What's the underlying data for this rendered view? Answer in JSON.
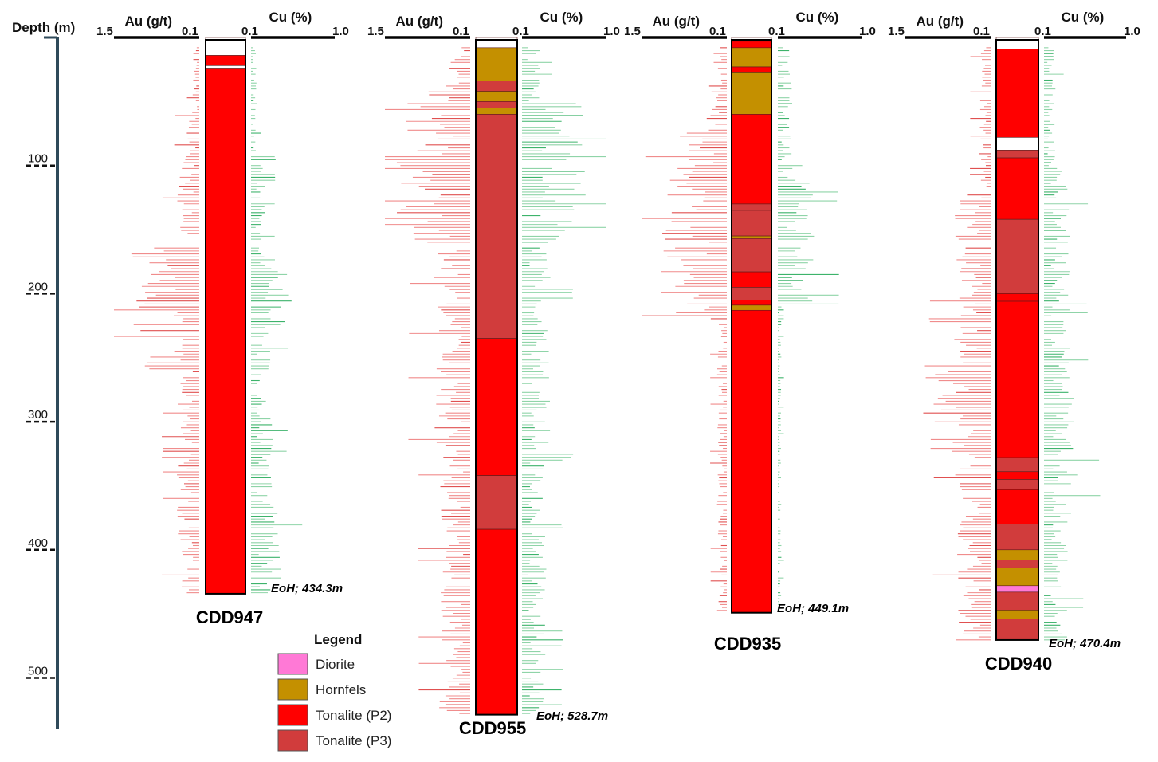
{
  "depth_axis": {
    "title": "Depth (m)",
    "ticks": [
      "100",
      "200",
      "300",
      "400",
      "500"
    ],
    "tick_values": [
      100,
      200,
      300,
      400,
      500
    ],
    "color": "#2f4a5a"
  },
  "axis_labels": {
    "au_title": "Au (g/t)",
    "au_max": "1.5",
    "au_min": "0.1",
    "cu_title": "Cu (%)",
    "cu_min": "0.1",
    "cu_max": "1.0"
  },
  "colors": {
    "au_bar": "#f08c8c",
    "au_bar_dark": "#e05050",
    "cu_bar": "#8fd4a8",
    "cu_bar_dark": "#3db36b",
    "diorite": "#ff79d6",
    "hornfels": "#c49000",
    "tonalite_p2": "#ff0000",
    "tonalite_p3": "#d13c3c",
    "outline": "#000000"
  },
  "holes": [
    {
      "name": "CDD947",
      "eoh": "EoH; 434.3m",
      "depth_m": 434.3,
      "au_seed": 11,
      "cu_seed": 23,
      "au_zones": [
        [
          0,
          60,
          0.06
        ],
        [
          60,
          90,
          0.12
        ],
        [
          90,
          160,
          0.18
        ],
        [
          160,
          260,
          0.55
        ],
        [
          260,
          434,
          0.18
        ]
      ],
      "cu_zones": [
        [
          0,
          90,
          0.05
        ],
        [
          90,
          180,
          0.12
        ],
        [
          180,
          230,
          0.35
        ],
        [
          230,
          360,
          0.18
        ],
        [
          360,
          434,
          0.25
        ]
      ],
      "intervals": [
        {
          "from": 0,
          "to": 14,
          "lith": "none"
        },
        {
          "from": 14,
          "to": 22,
          "lith": "tonalite_p2"
        },
        {
          "from": 22,
          "to": 24,
          "lith": "none"
        },
        {
          "from": 24,
          "to": 434.3,
          "lith": "tonalite_p2"
        }
      ]
    },
    {
      "name": "CDD955",
      "eoh": "EoH; 528.7m",
      "depth_m": 528.7,
      "au_seed": 37,
      "cu_seed": 41,
      "au_zones": [
        [
          0,
          50,
          0.2
        ],
        [
          50,
          160,
          0.6
        ],
        [
          160,
          330,
          0.3
        ],
        [
          330,
          528,
          0.25
        ]
      ],
      "cu_zones": [
        [
          0,
          50,
          0.15
        ],
        [
          50,
          160,
          0.55
        ],
        [
          160,
          330,
          0.25
        ],
        [
          330,
          528,
          0.2
        ]
      ],
      "intervals": [
        {
          "from": 0,
          "to": 8,
          "lith": "none"
        },
        {
          "from": 8,
          "to": 34,
          "lith": "hornfels"
        },
        {
          "from": 34,
          "to": 42,
          "lith": "tonalite_p3"
        },
        {
          "from": 42,
          "to": 50,
          "lith": "hornfels"
        },
        {
          "from": 50,
          "to": 55,
          "lith": "tonalite_p3"
        },
        {
          "from": 55,
          "to": 60,
          "lith": "hornfels"
        },
        {
          "from": 60,
          "to": 235,
          "lith": "tonalite_p3"
        },
        {
          "from": 235,
          "to": 342,
          "lith": "tonalite_p2"
        },
        {
          "from": 342,
          "to": 384,
          "lith": "tonalite_p3"
        },
        {
          "from": 384,
          "to": 528.7,
          "lith": "tonalite_p2"
        }
      ]
    },
    {
      "name": "CDD935",
      "eoh": "EoH; 449.1m",
      "depth_m": 449.1,
      "au_seed": 53,
      "cu_seed": 67,
      "au_zones": [
        [
          0,
          60,
          0.15
        ],
        [
          60,
          110,
          0.4
        ],
        [
          110,
          220,
          0.55
        ],
        [
          220,
          449,
          0.08
        ]
      ],
      "cu_zones": [
        [
          0,
          110,
          0.12
        ],
        [
          110,
          210,
          0.3
        ],
        [
          210,
          449,
          0.03
        ]
      ],
      "intervals": [
        {
          "from": 0,
          "to": 3,
          "lith": "none"
        },
        {
          "from": 3,
          "to": 8,
          "lith": "tonalite_p2"
        },
        {
          "from": 8,
          "to": 23,
          "lith": "hornfels"
        },
        {
          "from": 23,
          "to": 27,
          "lith": "tonalite_p2"
        },
        {
          "from": 27,
          "to": 60,
          "lith": "hornfels"
        },
        {
          "from": 60,
          "to": 130,
          "lith": "tonalite_p2"
        },
        {
          "from": 130,
          "to": 135,
          "lith": "tonalite_p3"
        },
        {
          "from": 135,
          "to": 155,
          "lith": "tonalite_p3"
        },
        {
          "from": 155,
          "to": 157,
          "lith": "hornfels"
        },
        {
          "from": 157,
          "to": 183,
          "lith": "tonalite_p3"
        },
        {
          "from": 183,
          "to": 195,
          "lith": "tonalite_p2"
        },
        {
          "from": 195,
          "to": 205,
          "lith": "tonalite_p3"
        },
        {
          "from": 205,
          "to": 209,
          "lith": "tonalite_p2"
        },
        {
          "from": 209,
          "to": 213,
          "lith": "hornfels"
        },
        {
          "from": 213,
          "to": 449.1,
          "lith": "tonalite_p2"
        }
      ]
    },
    {
      "name": "CDD940",
      "eoh": "EoH; 470.4m",
      "depth_m": 470.4,
      "au_seed": 71,
      "cu_seed": 89,
      "au_zones": [
        [
          0,
          120,
          0.1
        ],
        [
          120,
          250,
          0.3
        ],
        [
          250,
          350,
          0.55
        ],
        [
          350,
          470,
          0.28
        ]
      ],
      "cu_zones": [
        [
          0,
          100,
          0.1
        ],
        [
          100,
          280,
          0.22
        ],
        [
          280,
          380,
          0.28
        ],
        [
          380,
          470,
          0.2
        ]
      ],
      "intervals": [
        {
          "from": 0,
          "to": 9,
          "lith": "none"
        },
        {
          "from": 9,
          "to": 78,
          "lith": "tonalite_p2"
        },
        {
          "from": 78,
          "to": 88,
          "lith": "none"
        },
        {
          "from": 88,
          "to": 94,
          "lith": "tonalite_p3"
        },
        {
          "from": 94,
          "to": 142,
          "lith": "tonalite_p2"
        },
        {
          "from": 142,
          "to": 200,
          "lith": "tonalite_p3"
        },
        {
          "from": 200,
          "to": 206,
          "lith": "tonalite_p2"
        },
        {
          "from": 206,
          "to": 328,
          "lith": "tonalite_p2"
        },
        {
          "from": 328,
          "to": 339,
          "lith": "tonalite_p3"
        },
        {
          "from": 339,
          "to": 345,
          "lith": "tonalite_p2"
        },
        {
          "from": 345,
          "to": 353,
          "lith": "tonalite_p3"
        },
        {
          "from": 353,
          "to": 380,
          "lith": "tonalite_p2"
        },
        {
          "from": 380,
          "to": 400,
          "lith": "tonalite_p3"
        },
        {
          "from": 400,
          "to": 408,
          "lith": "hornfels"
        },
        {
          "from": 408,
          "to": 414,
          "lith": "tonalite_p3"
        },
        {
          "from": 414,
          "to": 428,
          "lith": "hornfels"
        },
        {
          "from": 428,
          "to": 433,
          "lith": "diorite"
        },
        {
          "from": 433,
          "to": 447,
          "lith": "tonalite_p3"
        },
        {
          "from": 447,
          "to": 454,
          "lith": "hornfels"
        },
        {
          "from": 454,
          "to": 470.4,
          "lith": "tonalite_p3"
        }
      ]
    }
  ],
  "legend": {
    "title": "Legend",
    "items": [
      {
        "key": "diorite",
        "label": "Diorite"
      },
      {
        "key": "hornfels",
        "label": "Hornfels"
      },
      {
        "key": "tonalite_p2",
        "label": "Tonalite (P2)"
      },
      {
        "key": "tonalite_p3",
        "label": "Tonalite (P3)"
      }
    ]
  }
}
